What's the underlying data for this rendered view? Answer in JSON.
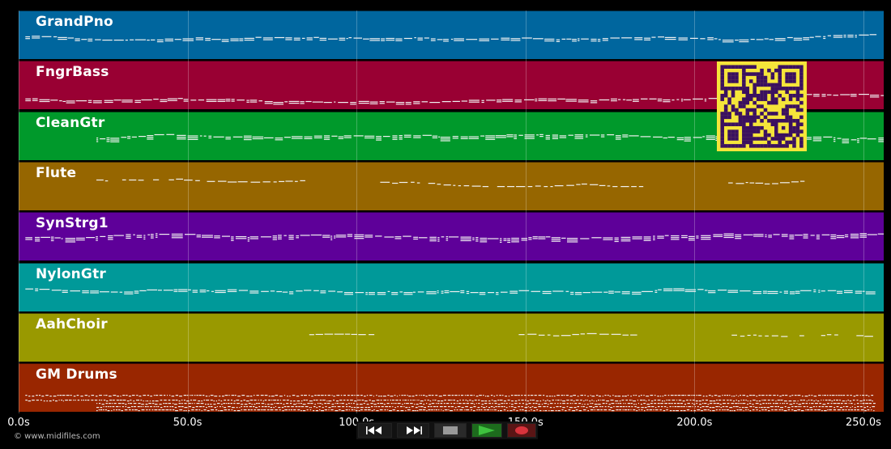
{
  "app": {
    "watermark": "© www.midifiles.com"
  },
  "colors": {
    "background": "#000000",
    "note": "#f0f0f0",
    "qr_bg": "#f5e53a",
    "qr_fg": "#3a1060"
  },
  "timeline": {
    "start_s": 0,
    "end_s": 256,
    "ticks": [
      {
        "value": 0,
        "label": "0.0s"
      },
      {
        "value": 50,
        "label": "50.0s"
      },
      {
        "value": 100,
        "label": "100.0s"
      },
      {
        "value": 150,
        "label": "150.0s"
      },
      {
        "value": 200,
        "label": "200.0s"
      },
      {
        "value": 250,
        "label": "250.0s"
      }
    ]
  },
  "tracks": [
    {
      "name": "GrandPno",
      "color": "#00669e",
      "active_ranges": [
        [
          2,
          253
        ]
      ]
    },
    {
      "name": "FngrBass",
      "color": "#990033",
      "active_ranges": [
        [
          2,
          256
        ]
      ]
    },
    {
      "name": "CleanGtr",
      "color": "#00992b",
      "active_ranges": [
        [
          23,
          256
        ]
      ]
    },
    {
      "name": "Flute",
      "color": "#966600",
      "active_ranges": [
        [
          23,
          85
        ],
        [
          107,
          185
        ],
        [
          210,
          233
        ]
      ]
    },
    {
      "name": "SynStrg1",
      "color": "#5e0099",
      "active_ranges": [
        [
          2,
          256
        ]
      ]
    },
    {
      "name": "NylonGtr",
      "color": "#009999",
      "active_ranges": [
        [
          2,
          253
        ]
      ]
    },
    {
      "name": "AahChoir",
      "color": "#999900",
      "active_ranges": [
        [
          86,
          105
        ],
        [
          148,
          188
        ],
        [
          211,
          252
        ]
      ]
    },
    {
      "name": "GM Drums",
      "color": "#992600",
      "active_ranges": [
        [
          2,
          253
        ]
      ]
    }
  ],
  "controls": {
    "rewind_icon": "rewind-icon",
    "fast_forward_icon": "fast-forward-icon",
    "stop_icon": "stop-icon",
    "play_icon": "play-icon",
    "record_icon": "record-icon",
    "play_color": "#3ec23e",
    "record_color": "#d8333c"
  }
}
